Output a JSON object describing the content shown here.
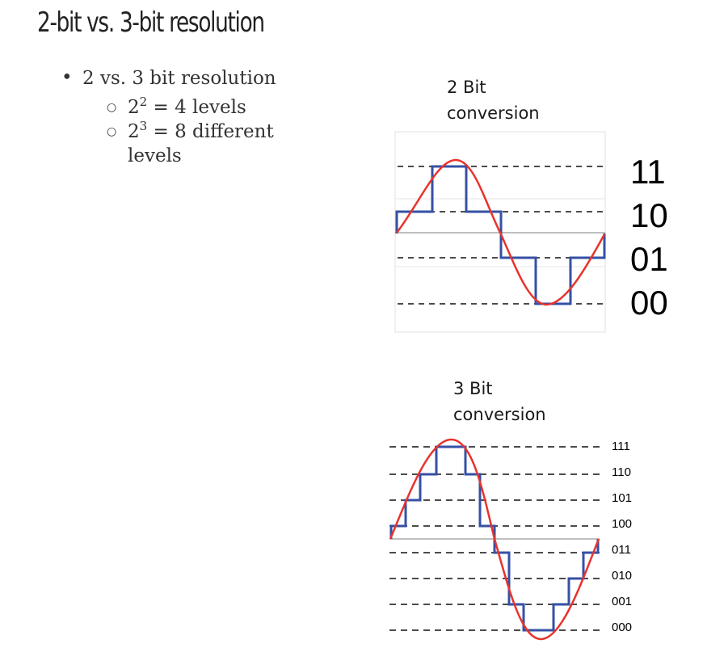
{
  "title": "2-bit vs. 3-bit resolution",
  "bullets": {
    "main": "2 vs. 3 bit resolution",
    "sub1_base": "2",
    "sub1_exp": "2",
    "sub1_rest": " = 4 levels",
    "sub2_base": "2",
    "sub2_exp": "3",
    "sub2_rest": " = 8 different levels"
  },
  "diagram_2bit": {
    "caption_line1": "2 Bit",
    "caption_line2": "conversion",
    "codes": [
      "11",
      "10",
      "01",
      "00"
    ]
  },
  "diagram_3bit": {
    "caption_line1": "3 Bit",
    "caption_line2": "conversion",
    "codes": [
      "111",
      "110",
      "101",
      "100",
      "011",
      "010",
      "001",
      "000"
    ]
  },
  "colors": {
    "sine": "#e8332d",
    "staircase": "#3550a6",
    "grid": "#333333"
  }
}
